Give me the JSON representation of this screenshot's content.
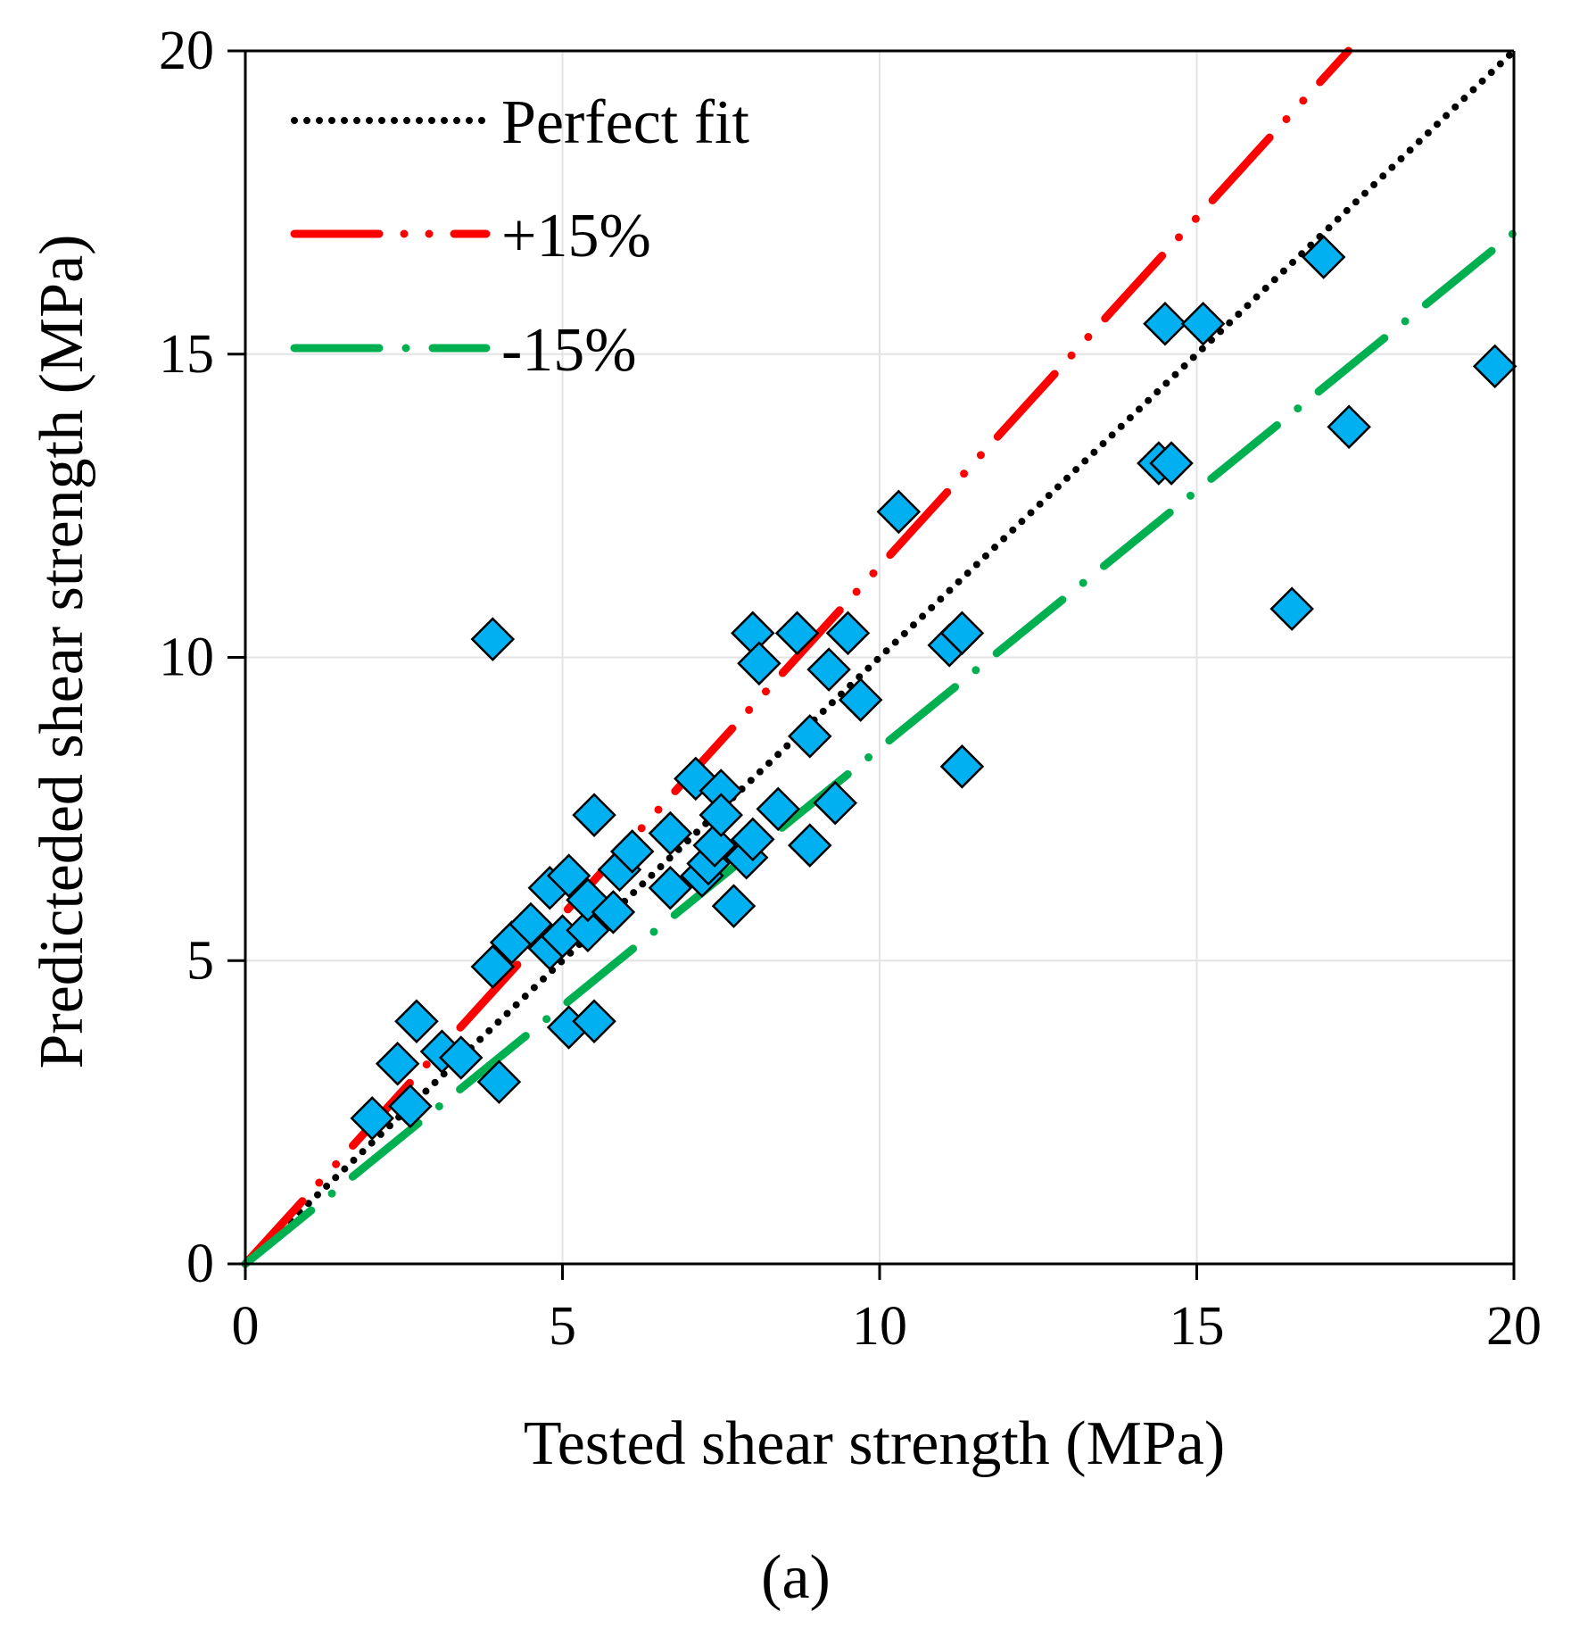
{
  "chart_data": {
    "type": "scatter",
    "xlabel": "Tested shear strength (MPa)",
    "ylabel": "Predicteded shear strength (MPa)",
    "xlim": [
      0,
      20
    ],
    "ylim": [
      0,
      20
    ],
    "xticks": [
      "0",
      "5",
      "10",
      "15",
      "20"
    ],
    "yticks": [
      "0",
      "5",
      "10",
      "15",
      "20"
    ],
    "grid": true,
    "legend_position": "top-left",
    "panel_label": "(a)",
    "reference_lines": [
      {
        "name": "Perfect fit",
        "slope": 1.0,
        "color": "#000000",
        "style": "dotted"
      },
      {
        "name": "+15%",
        "slope": 1.15,
        "color": "#ff0000",
        "style": "dash-dot-dot"
      },
      {
        "name": "-15%",
        "slope": 0.85,
        "color": "#00b050",
        "style": "dash-dot"
      }
    ],
    "series": [
      {
        "marker": "diamond",
        "color": "#00b0f0",
        "points": [
          [
            2.0,
            2.4
          ],
          [
            2.4,
            3.3
          ],
          [
            2.6,
            2.6
          ],
          [
            2.7,
            4.0
          ],
          [
            3.1,
            3.5
          ],
          [
            3.4,
            3.4
          ],
          [
            3.9,
            4.9
          ],
          [
            4.0,
            3.0
          ],
          [
            3.9,
            10.3
          ],
          [
            4.2,
            5.3
          ],
          [
            4.5,
            5.6
          ],
          [
            4.8,
            5.2
          ],
          [
            4.8,
            6.2
          ],
          [
            5.0,
            5.4
          ],
          [
            5.1,
            6.4
          ],
          [
            5.1,
            3.9
          ],
          [
            5.4,
            5.5
          ],
          [
            5.4,
            6.0
          ],
          [
            5.5,
            4.0
          ],
          [
            5.5,
            7.4
          ],
          [
            5.8,
            5.8
          ],
          [
            5.9,
            6.5
          ],
          [
            6.1,
            6.8
          ],
          [
            6.7,
            7.1
          ],
          [
            6.7,
            6.2
          ],
          [
            7.1,
            8.0
          ],
          [
            7.2,
            6.4
          ],
          [
            7.3,
            6.6
          ],
          [
            7.4,
            6.9
          ],
          [
            7.5,
            7.8
          ],
          [
            7.5,
            7.4
          ],
          [
            7.7,
            5.9
          ],
          [
            7.9,
            6.7
          ],
          [
            8.0,
            7.0
          ],
          [
            8.0,
            10.4
          ],
          [
            8.1,
            9.9
          ],
          [
            8.4,
            7.5
          ],
          [
            8.7,
            10.4
          ],
          [
            8.9,
            8.7
          ],
          [
            8.9,
            6.9
          ],
          [
            9.2,
            9.8
          ],
          [
            9.3,
            7.6
          ],
          [
            9.5,
            10.4
          ],
          [
            9.7,
            9.3
          ],
          [
            10.3,
            12.4
          ],
          [
            11.1,
            10.2
          ],
          [
            11.3,
            10.4
          ],
          [
            11.3,
            8.2
          ],
          [
            14.4,
            13.2
          ],
          [
            14.5,
            15.5
          ],
          [
            14.6,
            13.2
          ],
          [
            15.1,
            15.5
          ],
          [
            16.5,
            10.8
          ],
          [
            17.0,
            16.6
          ],
          [
            17.4,
            13.8
          ],
          [
            19.7,
            14.8
          ]
        ]
      }
    ]
  }
}
